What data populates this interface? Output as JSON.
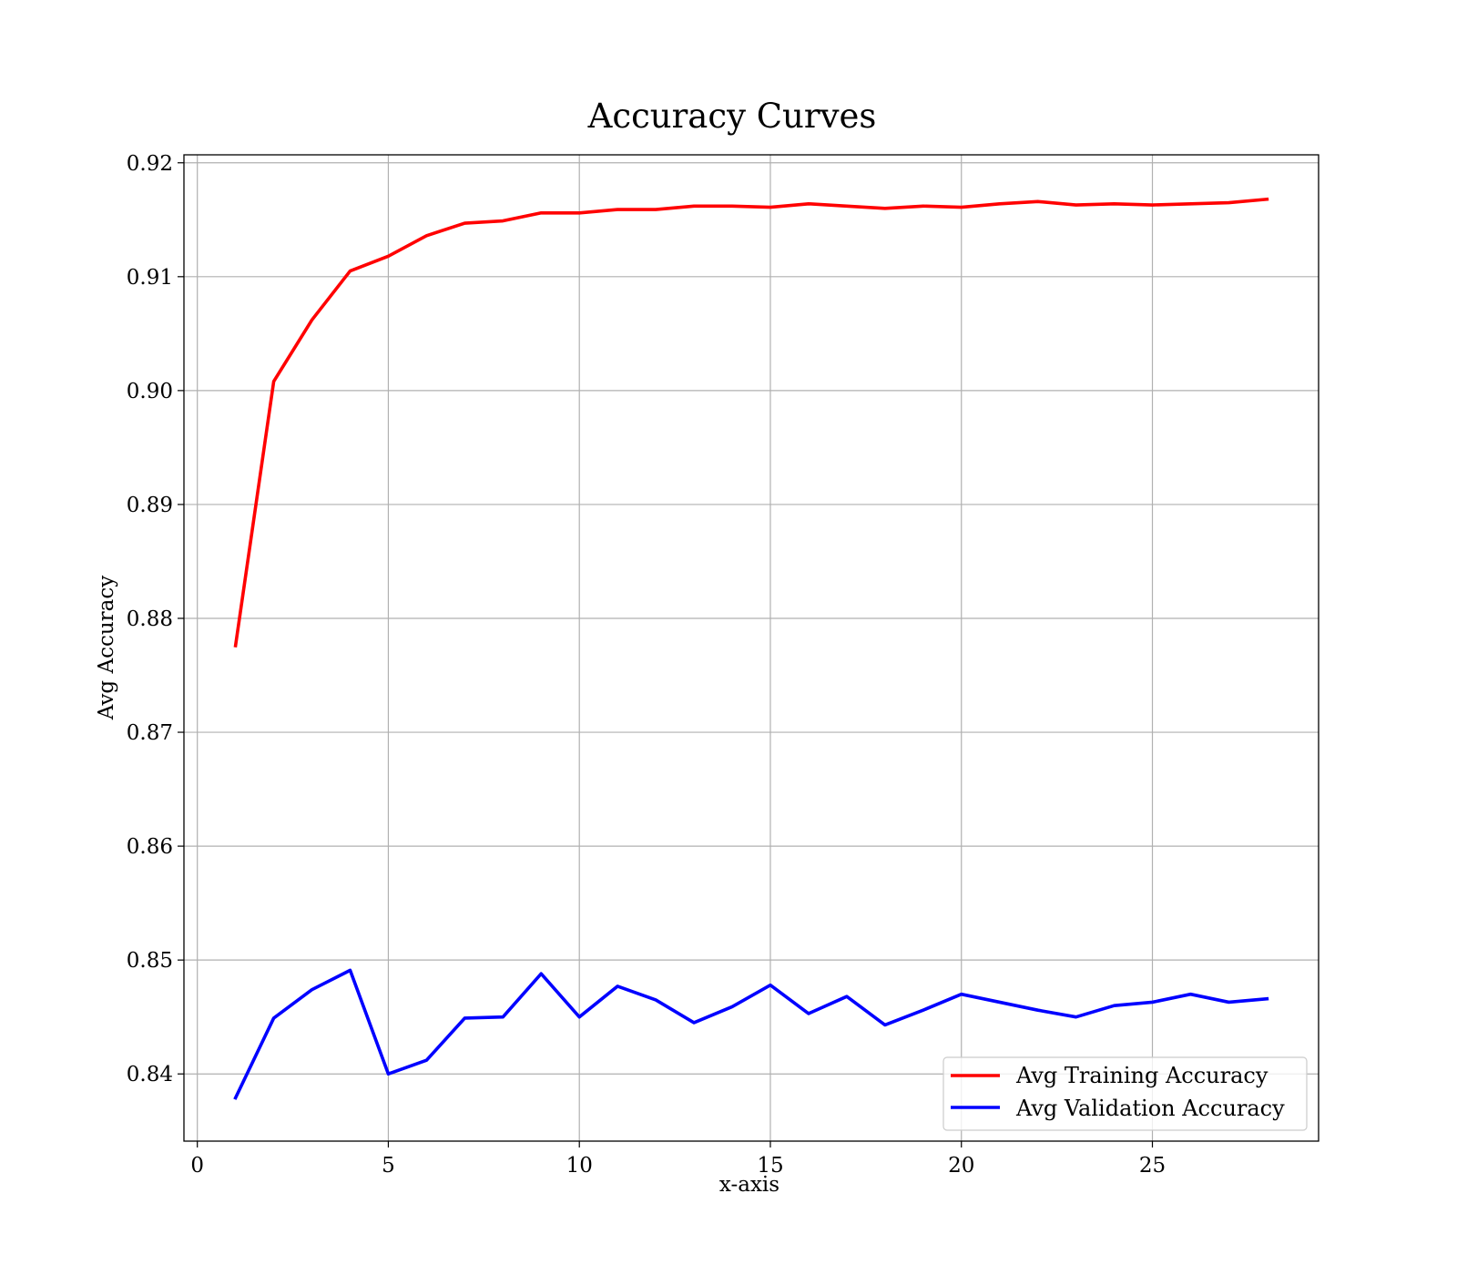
{
  "chart_data": {
    "type": "line",
    "title": "Accuracy Curves",
    "xlabel": "x-axis",
    "ylabel": "Avg Accuracy",
    "xlim": [
      -0.35,
      29.35
    ],
    "ylim": [
      0.8341,
      0.9207
    ],
    "x_ticks": [
      0,
      5,
      10,
      15,
      20,
      25
    ],
    "x_tick_labels": [
      "0",
      "5",
      "10",
      "15",
      "20",
      "25"
    ],
    "y_ticks": [
      0.84,
      0.85,
      0.86,
      0.87,
      0.88,
      0.89,
      0.9,
      0.91,
      0.92
    ],
    "y_tick_labels": [
      "0.84",
      "0.85",
      "0.86",
      "0.87",
      "0.88",
      "0.89",
      "0.90",
      "0.91",
      "0.92"
    ],
    "grid": true,
    "legend_position": "lower-right",
    "x": [
      1,
      2,
      3,
      4,
      5,
      6,
      7,
      8,
      9,
      10,
      11,
      12,
      13,
      14,
      15,
      16,
      17,
      18,
      19,
      20,
      21,
      22,
      23,
      24,
      25,
      26,
      27,
      28
    ],
    "series": [
      {
        "name": "Avg Training Accuracy",
        "color": "#ff0000",
        "values": [
          0.8776,
          0.9008,
          0.9062,
          0.9105,
          0.9118,
          0.9136,
          0.9147,
          0.9149,
          0.9156,
          0.9156,
          0.9159,
          0.9159,
          0.9162,
          0.9162,
          0.9161,
          0.9164,
          0.9162,
          0.916,
          0.9162,
          0.9161,
          0.9164,
          0.9166,
          0.9163,
          0.9164,
          0.9163,
          0.9164,
          0.9165,
          0.9168
        ]
      },
      {
        "name": "Avg Validation Accuracy",
        "color": "#0000ff",
        "values": [
          0.8379,
          0.8449,
          0.8474,
          0.8491,
          0.84,
          0.8412,
          0.8449,
          0.845,
          0.8488,
          0.845,
          0.8477,
          0.8465,
          0.8445,
          0.8459,
          0.8478,
          0.8453,
          0.8468,
          0.8443,
          0.8456,
          0.847,
          0.8463,
          0.8456,
          0.845,
          0.846,
          0.8463,
          0.847,
          0.8463,
          0.8466
        ]
      }
    ]
  }
}
